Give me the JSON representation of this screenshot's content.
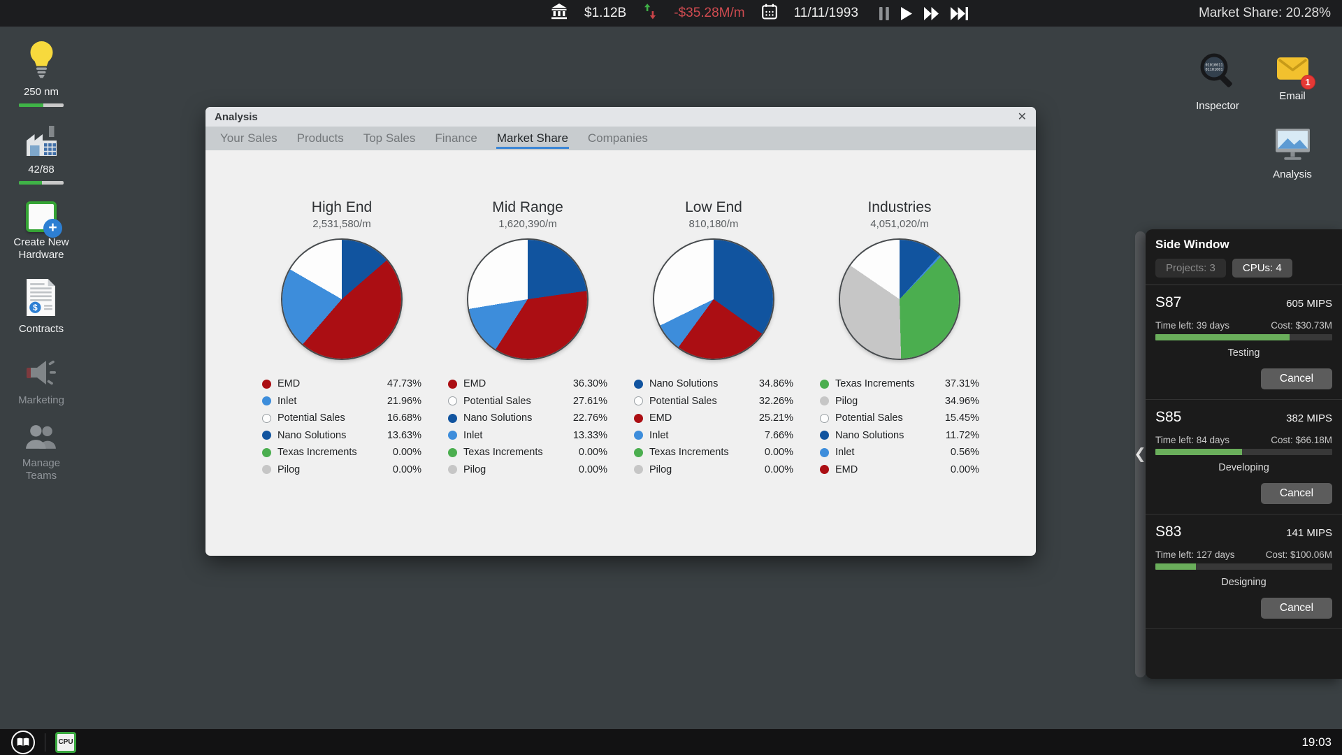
{
  "top_bar": {
    "cash": "$1.12B",
    "cashflow": "-$35.28M/m",
    "date": "11/11/1993",
    "market_share": "Market Share: 20.28%",
    "icons": [
      "bank-icon",
      "trend-arrows-icon",
      "calendar-icon"
    ],
    "playback": [
      "pause",
      "play",
      "fast-forward",
      "fastest-forward"
    ]
  },
  "left_toolbar": {
    "items": [
      {
        "label": "250 nm",
        "icon": "lightbulb-research-icon",
        "progress": 55
      },
      {
        "label": "42/88",
        "icon": "factory-icon",
        "progress": 52
      },
      {
        "label": "Create New Hardware",
        "icon": "new-hardware-icon"
      },
      {
        "label": "Contracts",
        "icon": "contract-document-icon"
      },
      {
        "label": "Marketing",
        "icon": "megaphone-icon",
        "disabled": true
      },
      {
        "label": "Manage Teams",
        "icon": "team-people-icon",
        "disabled": true
      }
    ]
  },
  "right_toolbar": {
    "items": [
      {
        "label": "Inspector",
        "icon": "inspector-magnifier-icon"
      },
      {
        "label": "Email",
        "icon": "email-envelope-icon",
        "badge": "1"
      },
      {
        "label": "Analysis",
        "icon": "analysis-monitor-icon"
      }
    ]
  },
  "window": {
    "title": "Analysis",
    "close_label": "✕",
    "tabs": [
      "Your Sales",
      "Products",
      "Top Sales",
      "Finance",
      "Market Share",
      "Companies"
    ],
    "active_tab": "Market Share"
  },
  "chart_data": [
    {
      "type": "pie",
      "title": "High End",
      "subtitle": "2,531,580/m",
      "labels": [
        "EMD",
        "Inlet",
        "Potential Sales",
        "Nano Solutions",
        "Texas Increments",
        "Pilog"
      ],
      "values": [
        47.73,
        21.96,
        16.68,
        13.63,
        0.0,
        0.0
      ]
    },
    {
      "type": "pie",
      "title": "Mid Range",
      "subtitle": "1,620,390/m",
      "labels": [
        "EMD",
        "Potential Sales",
        "Nano Solutions",
        "Inlet",
        "Texas Increments",
        "Pilog"
      ],
      "values": [
        36.3,
        27.61,
        22.76,
        13.33,
        0.0,
        0.0
      ]
    },
    {
      "type": "pie",
      "title": "Low End",
      "subtitle": "810,180/m",
      "labels": [
        "Nano Solutions",
        "Potential Sales",
        "EMD",
        "Inlet",
        "Texas Increments",
        "Pilog"
      ],
      "values": [
        34.86,
        32.26,
        25.21,
        7.66,
        0.0,
        0.0
      ]
    },
    {
      "type": "pie",
      "title": "Industries",
      "subtitle": "4,051,020/m",
      "labels": [
        "Texas Increments",
        "Pilog",
        "Potential Sales",
        "Nano Solutions",
        "Inlet",
        "EMD"
      ],
      "values": [
        37.31,
        34.96,
        15.45,
        11.72,
        0.56,
        0.0
      ]
    }
  ],
  "company_colors": {
    "EMD": "#AB0E13",
    "Inlet": "#3D8DDB",
    "Potential Sales": "#FDFDFD",
    "Nano Solutions": "#11549F",
    "Texas Increments": "#4BAE4F",
    "Pilog": "#C6C6C6"
  },
  "pie_slice_order": [
    "Nano Solutions",
    "EMD",
    "Inlet",
    "Texas Increments",
    "Pilog",
    "Potential Sales"
  ],
  "side_window": {
    "title": "Side Window",
    "buttons": [
      {
        "label": "Projects: 3",
        "active": false
      },
      {
        "label": "CPUs: 4",
        "active": true
      }
    ],
    "projects": [
      {
        "name": "S87",
        "mips": "605 MIPS",
        "time_left": "Time left: 39 days",
        "cost": "Cost: $30.73M",
        "progress": 76,
        "stage": "Testing",
        "cancel_label": "Cancel"
      },
      {
        "name": "S85",
        "mips": "382 MIPS",
        "time_left": "Time left: 84 days",
        "cost": "Cost: $66.18M",
        "progress": 49,
        "stage": "Developing",
        "cancel_label": "Cancel"
      },
      {
        "name": "S83",
        "mips": "141 MIPS",
        "time_left": "Time left: 127 days",
        "cost": "Cost: $100.06M",
        "progress": 23,
        "stage": "Designing",
        "cancel_label": "Cancel"
      }
    ]
  },
  "bottom_bar": {
    "clock": "19:03",
    "cpu_chip_label": "CPU",
    "icons": [
      "menu-book-icon",
      "cpu-chip-icon"
    ]
  },
  "glyphs": {
    "plus": "+",
    "dollar": "$",
    "collapse": "❮",
    "binary1": "01010011",
    "binary2": "01101001"
  }
}
